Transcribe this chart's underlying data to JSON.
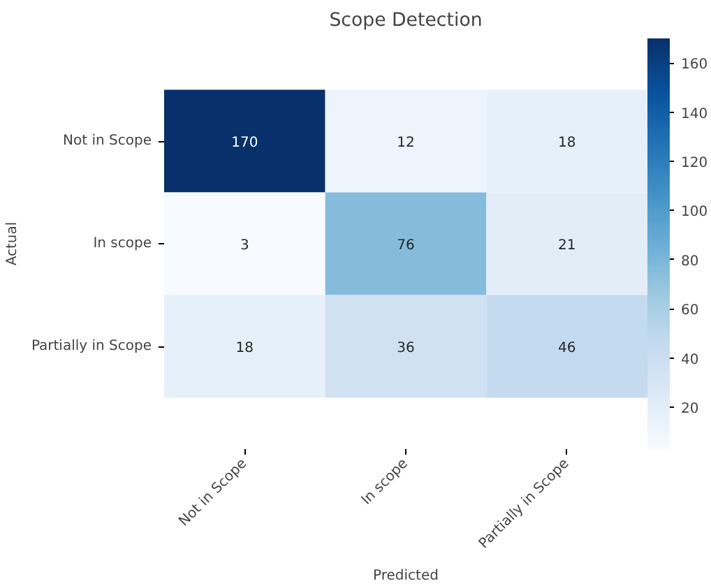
{
  "chart_data": {
    "type": "heatmap",
    "title": "Scope Detection",
    "xlabel": "Predicted",
    "ylabel": "Actual",
    "categories": [
      "Not in Scope",
      "In scope",
      "Partially in Scope"
    ],
    "y_categories": [
      "Not in Scope",
      "In scope",
      "Partially in Scope"
    ],
    "cells": [
      [
        170,
        12,
        18
      ],
      [
        3,
        76,
        21
      ],
      [
        18,
        36,
        46
      ]
    ],
    "clim": [
      3,
      170
    ],
    "cticks": [
      20,
      40,
      60,
      80,
      100,
      120,
      140,
      160
    ],
    "data_labels": true
  }
}
